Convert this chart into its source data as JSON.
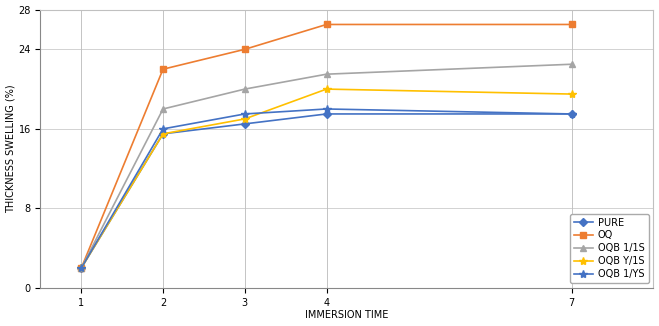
{
  "xlabel": "IMMERSION TIME",
  "ylabel": "THICKNESS SWELLING (%)",
  "x": [
    1,
    2,
    3,
    4,
    7
  ],
  "xtick_labels": [
    "1",
    "2",
    "3",
    "4",
    "7"
  ],
  "series": [
    {
      "label": "PURE",
      "color": "#4472C4",
      "marker": "D",
      "markersize": 4,
      "linewidth": 1.2,
      "values": [
        2.0,
        15.5,
        16.5,
        17.5,
        17.5
      ]
    },
    {
      "label": "OQ",
      "color": "#ED7D31",
      "marker": "s",
      "markersize": 4,
      "linewidth": 1.2,
      "values": [
        2.0,
        22.0,
        24.0,
        26.5,
        26.5
      ]
    },
    {
      "label": "OQB 1/1S",
      "color": "#A5A5A5",
      "marker": "^",
      "markersize": 4,
      "linewidth": 1.2,
      "values": [
        2.0,
        18.0,
        20.0,
        21.5,
        22.5
      ]
    },
    {
      "label": "OQB Y/1S",
      "color": "#FFC000",
      "marker": "*",
      "markersize": 6,
      "linewidth": 1.2,
      "values": [
        2.0,
        15.5,
        17.0,
        20.0,
        19.5
      ]
    },
    {
      "label": "OQB 1/YS",
      "color": "#4472C4",
      "marker": "*",
      "markersize": 6,
      "linewidth": 1.2,
      "values": [
        2.0,
        16.0,
        17.5,
        18.0,
        17.5
      ]
    }
  ],
  "ylim": [
    0,
    28
  ],
  "yticks": [
    0,
    8,
    16,
    24,
    28
  ],
  "ytick_labels": [
    "0",
    "8",
    "16",
    "24",
    "28"
  ],
  "xlim": [
    0.5,
    8.0
  ],
  "background_color": "#FFFFFF",
  "grid_color": "#C0C0C0",
  "legend_fontsize": 7,
  "axis_fontsize": 7,
  "tick_fontsize": 7
}
